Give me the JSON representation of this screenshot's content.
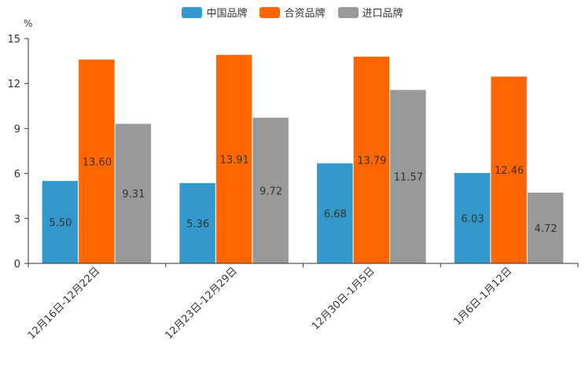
{
  "chart_data": {
    "type": "bar",
    "unit": "%",
    "categories": [
      "12月16日-12月22日",
      "12月23日-12月29日",
      "12月30日-1月5日",
      "1月6日-1月12日"
    ],
    "series": [
      {
        "name": "中国品牌",
        "color": "#3399cc",
        "values": [
          5.5,
          5.36,
          6.68,
          6.03
        ],
        "labels": [
          "5.50",
          "5.36",
          "6.68",
          "6.03"
        ]
      },
      {
        "name": "合资品牌",
        "color": "#ff6600",
        "values": [
          13.6,
          13.91,
          13.79,
          12.46
        ],
        "labels": [
          "13.60",
          "13.91",
          "13.79",
          "12.46"
        ]
      },
      {
        "name": "进口品牌",
        "color": "#999999",
        "values": [
          9.31,
          9.72,
          11.57,
          4.72
        ],
        "labels": [
          "9.31",
          "9.72",
          "11.57",
          "4.72"
        ]
      }
    ],
    "yticks": [
      "0",
      "3",
      "6",
      "9",
      "12",
      "15"
    ],
    "ylim": [
      0,
      15
    ],
    "legend_position": "top-center"
  }
}
